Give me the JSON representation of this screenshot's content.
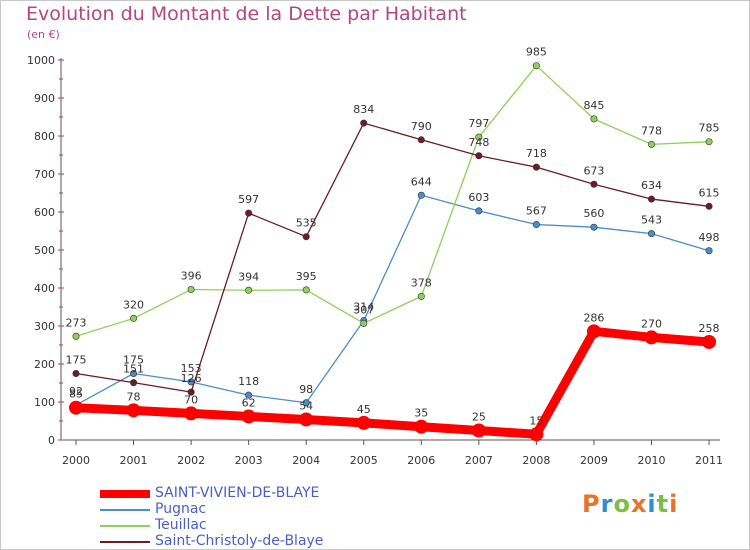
{
  "title": "Evolution du Montant de la Dette par Habitant",
  "unit": "(en €)",
  "logo": {
    "text": "Proxiti",
    "colors": [
      "#e8742c",
      "#2e8fd1",
      "#7cc043",
      "#e8742c",
      "#2e8fd1",
      "#7cc043",
      "#e8742c"
    ]
  },
  "chart_data": {
    "type": "line",
    "x": [
      "2000",
      "2001",
      "2002",
      "2003",
      "2004",
      "2005",
      "2006",
      "2007",
      "2008",
      "2009",
      "2010",
      "2011"
    ],
    "ylim": [
      0,
      1000
    ],
    "yticks": [
      "0",
      "100",
      "200",
      "300",
      "400",
      "500",
      "600",
      "700",
      "800",
      "900",
      "1000"
    ],
    "grid": false,
    "legend_position": "bottom-left",
    "series": [
      {
        "name": "SAINT-VIVIEN-DE-BLAYE",
        "color": "#ff0000",
        "bold": true,
        "values": [
          85,
          78,
          70,
          62,
          54,
          45,
          35,
          25,
          15,
          286,
          270,
          258
        ]
      },
      {
        "name": "Pugnac",
        "color": "#4a8fc8",
        "bold": false,
        "values": [
          92,
          175,
          153,
          118,
          98,
          314,
          644,
          603,
          567,
          560,
          543,
          498
        ]
      },
      {
        "name": "Teuillac",
        "color": "#8fd05a",
        "bold": false,
        "values": [
          273,
          320,
          396,
          394,
          395,
          307,
          378,
          797,
          985,
          845,
          778,
          785
        ]
      },
      {
        "name": "Saint-Christoly-de-Blaye",
        "color": "#6b1e22",
        "bold": false,
        "values": [
          175,
          151,
          126,
          597,
          535,
          834,
          790,
          748,
          718,
          673,
          634,
          615
        ]
      }
    ]
  }
}
